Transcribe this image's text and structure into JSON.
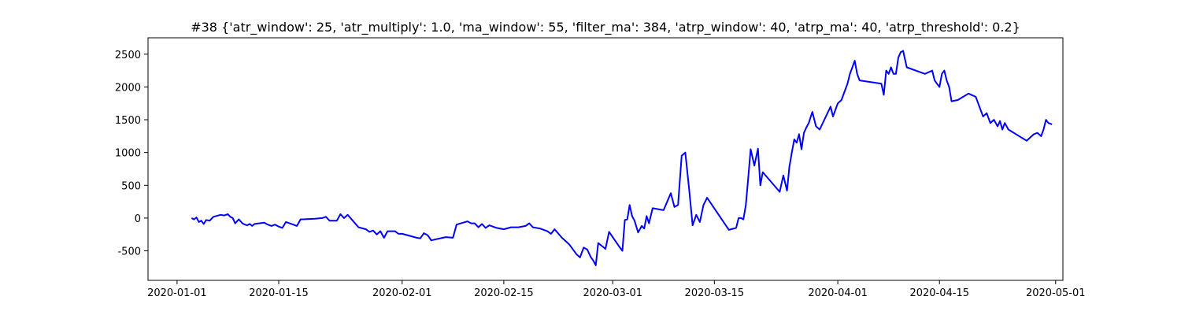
{
  "chart_data": {
    "type": "line",
    "title": "#38 {'atr_window': 25, 'atr_multiply': 1.0, 'ma_window': 55, 'filter_ma': 384, 'atrp_window': 40, 'atrp_ma': 40, 'atrp_threshold': 0.2}",
    "xlabel": "",
    "ylabel": "",
    "xlim": [
      "2019-12-28",
      "2020-05-02"
    ],
    "ylim": [
      -950,
      2750
    ],
    "x_ticks": [
      "2020-01-01",
      "2020-01-15",
      "2020-02-01",
      "2020-02-15",
      "2020-03-01",
      "2020-03-15",
      "2020-04-01",
      "2020-04-15",
      "2020-05-01"
    ],
    "y_ticks": [
      -500,
      0,
      500,
      1000,
      1500,
      2000,
      2500
    ],
    "grid": false,
    "line_color": "#0000ff",
    "series": [
      {
        "x": [
          "2020-01-03",
          "2020-01-03",
          "2020-01-03",
          "2020-01-04",
          "2020-01-04",
          "2020-01-04",
          "2020-01-05",
          "2020-01-05",
          "2020-01-06",
          "2020-01-07",
          "2020-01-07",
          "2020-01-08",
          "2020-01-08",
          "2020-01-08",
          "2020-01-09",
          "2020-01-09",
          "2020-01-10",
          "2020-01-10",
          "2020-01-10",
          "2020-01-11",
          "2020-01-11",
          "2020-01-11",
          "2020-01-13",
          "2020-01-13",
          "2020-01-14",
          "2020-01-14",
          "2020-01-15",
          "2020-01-15",
          "2020-01-16",
          "2020-01-17",
          "2020-01-17",
          "2020-01-18",
          "2020-01-20",
          "2020-01-21",
          "2020-01-21",
          "2020-01-22",
          "2020-01-23",
          "2020-01-23",
          "2020-01-24",
          "2020-01-24",
          "2020-01-26",
          "2020-01-27",
          "2020-01-27",
          "2020-01-28",
          "2020-01-28",
          "2020-01-29",
          "2020-01-29",
          "2020-01-30",
          "2020-01-31",
          "2020-01-31",
          "2020-02-01",
          "2020-02-03",
          "2020-02-03",
          "2020-02-04",
          "2020-02-04",
          "2020-02-05",
          "2020-02-07",
          "2020-02-08",
          "2020-02-08",
          "2020-02-10",
          "2020-02-10",
          "2020-02-11",
          "2020-02-11",
          "2020-02-12",
          "2020-02-12",
          "2020-02-13",
          "2020-02-14",
          "2020-02-15",
          "2020-02-16",
          "2020-02-17",
          "2020-02-18",
          "2020-02-18",
          "2020-02-19",
          "2020-02-20",
          "2020-02-21",
          "2020-02-21",
          "2020-02-22",
          "2020-02-23",
          "2020-02-24",
          "2020-02-25",
          "2020-02-25",
          "2020-02-26",
          "2020-02-26",
          "2020-02-27",
          "2020-02-27",
          "2020-02-27",
          "2020-02-28",
          "2020-02-29",
          "2020-02-29",
          "2020-03-02",
          "2020-03-02",
          "2020-03-02",
          "2020-03-03",
          "2020-03-03",
          "2020-03-03",
          "2020-03-04",
          "2020-03-04",
          "2020-03-05",
          "2020-03-05",
          "2020-03-05",
          "2020-03-06",
          "2020-03-06",
          "2020-03-08",
          "2020-03-09",
          "2020-03-09",
          "2020-03-10",
          "2020-03-10",
          "2020-03-11",
          "2020-03-11",
          "2020-03-12",
          "2020-03-12",
          "2020-03-13",
          "2020-03-13",
          "2020-03-14",
          "2020-03-17",
          "2020-03-18",
          "2020-03-18",
          "2020-03-18",
          "2020-03-19",
          "2020-03-19",
          "2020-03-19",
          "2020-03-20",
          "2020-03-20",
          "2020-03-21",
          "2020-03-21",
          "2020-03-21",
          "2020-03-24",
          "2020-03-24",
          "2020-03-25",
          "2020-03-25",
          "2020-03-25",
          "2020-03-26",
          "2020-03-26",
          "2020-03-26",
          "2020-03-27",
          "2020-03-27",
          "2020-03-27",
          "2020-03-28",
          "2020-03-28",
          "2020-03-29",
          "2020-03-29",
          "2020-03-31",
          "2020-03-31",
          "2020-03-31",
          "2020-04-01",
          "2020-04-01",
          "2020-04-02",
          "2020-04-02",
          "2020-04-02",
          "2020-04-03",
          "2020-04-03",
          "2020-04-03",
          "2020-04-04",
          "2020-04-07",
          "2020-04-07",
          "2020-04-07",
          "2020-04-08",
          "2020-04-08",
          "2020-04-08",
          "2020-04-09",
          "2020-04-09",
          "2020-04-09",
          "2020-04-10",
          "2020-04-10",
          "2020-04-13",
          "2020-04-14",
          "2020-04-14",
          "2020-04-14",
          "2020-04-15",
          "2020-04-15",
          "2020-04-15",
          "2020-04-16",
          "2020-04-16",
          "2020-04-16",
          "2020-04-17",
          "2020-04-17",
          "2020-04-19",
          "2020-04-20",
          "2020-04-21",
          "2020-04-21",
          "2020-04-22",
          "2020-04-22",
          "2020-04-23",
          "2020-04-23",
          "2020-04-23",
          "2020-04-24",
          "2020-04-24",
          "2020-04-27",
          "2020-04-28",
          "2020-04-28",
          "2020-04-29",
          "2020-04-29",
          "2020-04-29",
          "2020-04-30",
          "2020-04-30"
        ],
        "y": [
          0,
          -20,
          10,
          -60,
          -40,
          -90,
          -30,
          -40,
          20,
          50,
          40,
          60,
          20,
          0,
          -80,
          -20,
          -80,
          -100,
          -110,
          -90,
          -120,
          -90,
          -70,
          -100,
          -120,
          -100,
          -130,
          -150,
          -60,
          -100,
          -120,
          -20,
          -10,
          0,
          20,
          -40,
          -40,
          60,
          0,
          50,
          -140,
          -170,
          -210,
          -190,
          -250,
          -200,
          -300,
          -200,
          -200,
          -240,
          -240,
          -300,
          -310,
          -230,
          -260,
          -340,
          -290,
          -300,
          -100,
          -50,
          -80,
          -80,
          -140,
          -90,
          -150,
          -110,
          -150,
          -170,
          -140,
          -140,
          -120,
          -80,
          -140,
          -160,
          -200,
          -240,
          -170,
          -300,
          -400,
          -550,
          -600,
          -450,
          -480,
          -600,
          -650,
          -720,
          -380,
          -470,
          -210,
          -450,
          -500,
          -30,
          -20,
          200,
          30,
          -40,
          -220,
          -120,
          -160,
          30,
          -80,
          150,
          120,
          380,
          170,
          200,
          950,
          1000,
          460,
          -110,
          50,
          -60,
          200,
          310,
          -180,
          -150,
          0,
          0,
          -20,
          200,
          620,
          1050,
          800,
          1060,
          500,
          700,
          400,
          650,
          420,
          780,
          1000,
          1200,
          1150,
          1280,
          1050,
          1300,
          1380,
          1450,
          1620,
          1400,
          1350,
          1700,
          1550,
          1650,
          1750,
          1800,
          1950,
          2050,
          2200,
          2300,
          2400,
          2200,
          2100,
          2050,
          1880,
          2250,
          2200,
          2300,
          2200,
          2200,
          2450,
          2530,
          2550,
          2300,
          2200,
          2250,
          2100,
          2050,
          2000,
          2200,
          2250,
          2100,
          2000,
          1780,
          1790,
          1800,
          1900,
          1850,
          1550,
          1600,
          1450,
          1500,
          1400,
          1480,
          1350,
          1450,
          1350,
          1180,
          1280,
          1300,
          1250,
          1350,
          1500,
          1450,
          1430
        ]
      }
    ]
  }
}
